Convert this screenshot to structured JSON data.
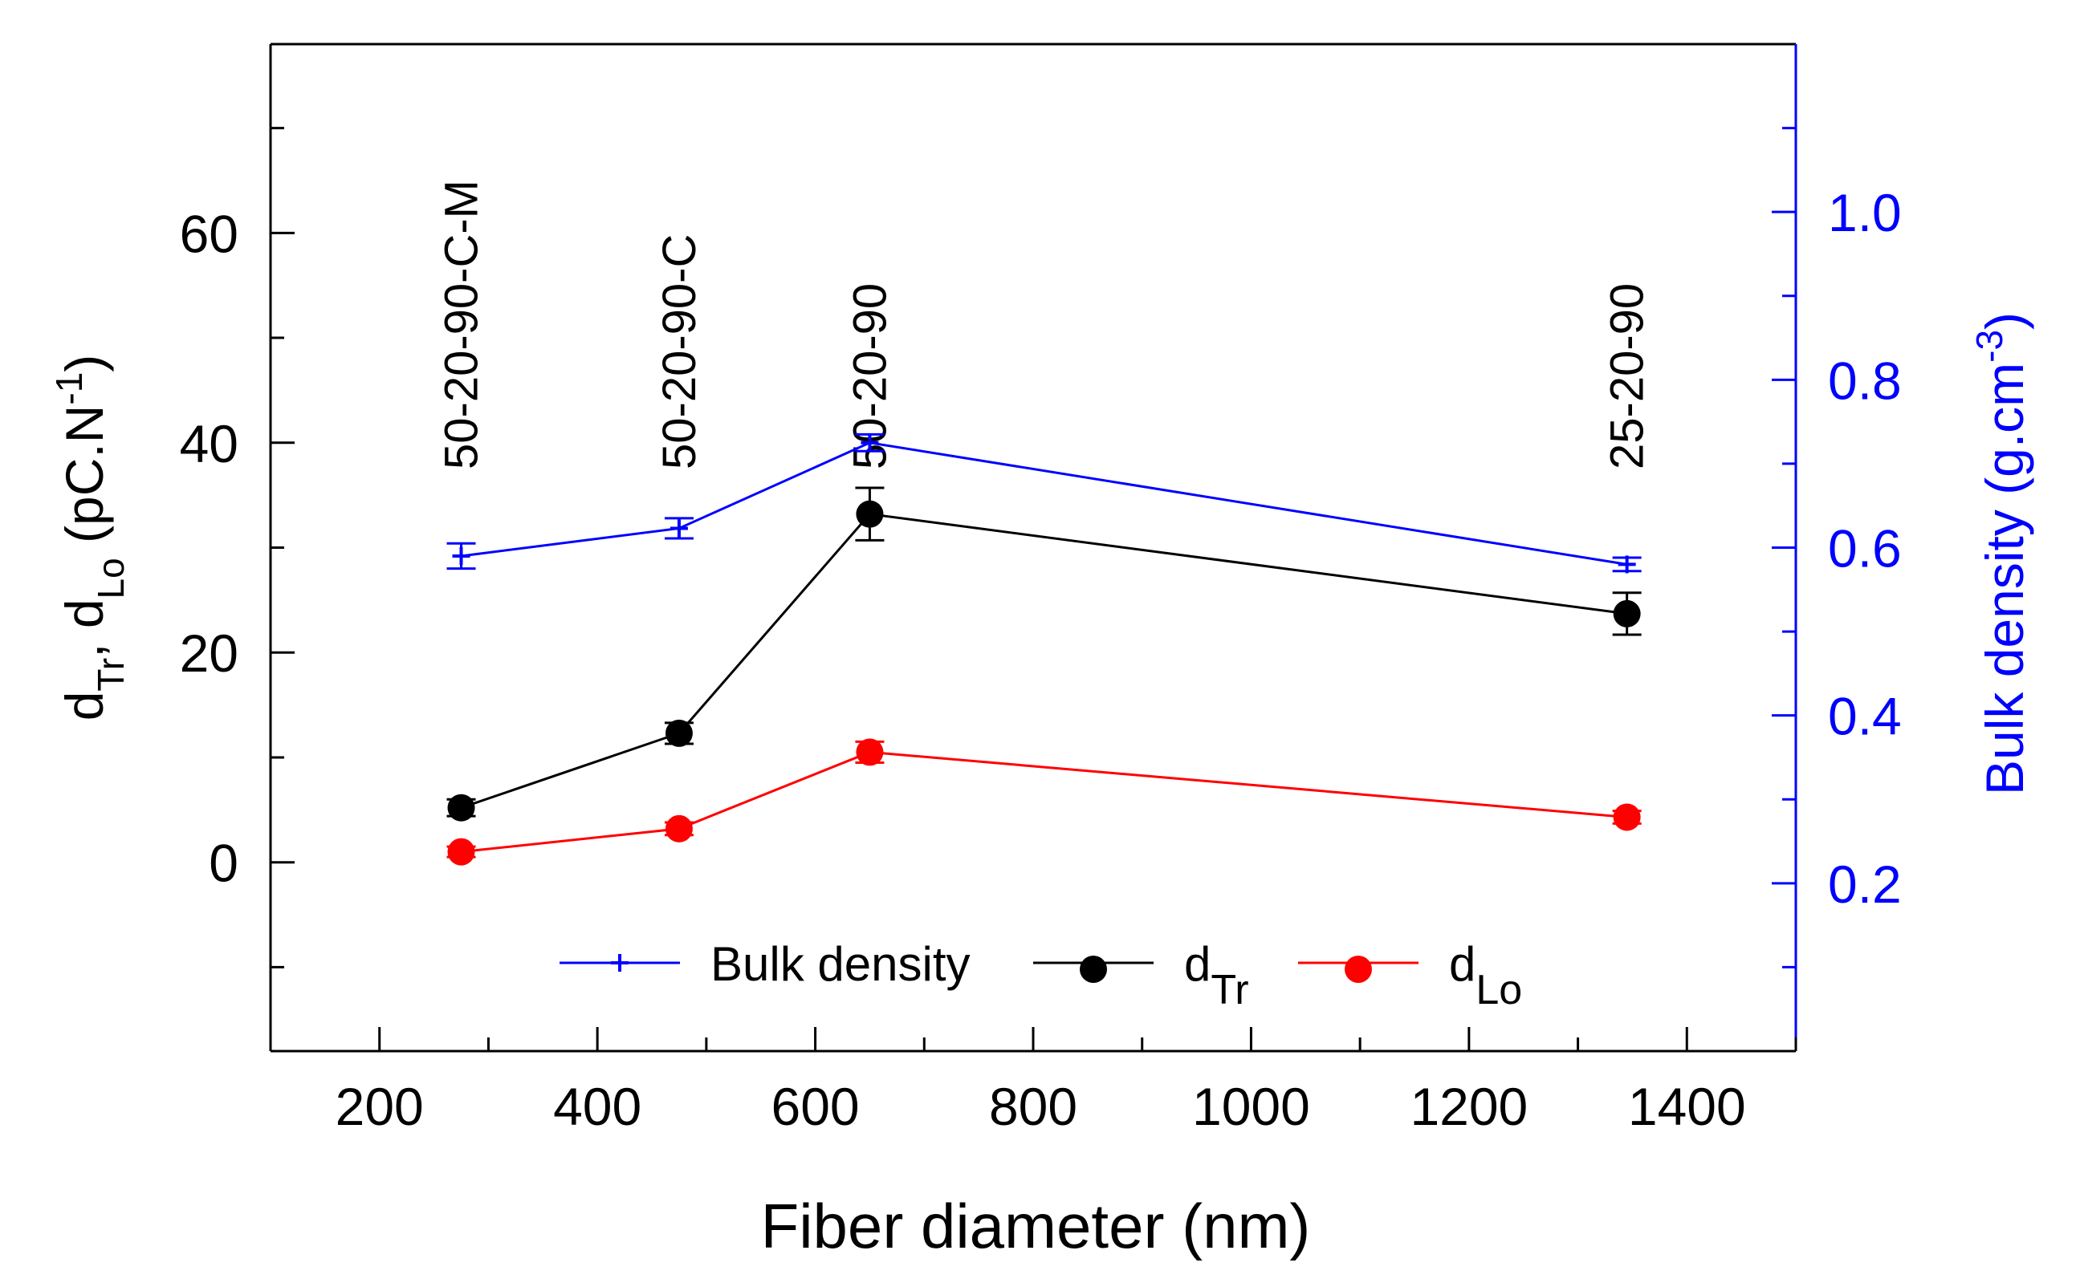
{
  "chart_data": {
    "type": "line",
    "title": "",
    "xlabel": "Fiber diameter (nm)",
    "xlim": [
      100,
      1500
    ],
    "xticks": [
      200,
      400,
      600,
      800,
      1000,
      1200,
      1400
    ],
    "y_left": {
      "label_main": "d",
      "label_sub1": "Tr",
      "label_sep": ", d",
      "label_sub2": "Lo",
      "label_unit": " (pC.N",
      "label_sup": "-1",
      "label_close": ")",
      "lim": [
        -18,
        78
      ],
      "ticks": [
        0,
        20,
        40,
        60
      ]
    },
    "y_right": {
      "label_main": "Bulk density (g.cm",
      "label_sup": "-3",
      "label_close": ")",
      "lim": [
        0,
        1.2
      ],
      "ticks": [
        0.2,
        0.4,
        0.6,
        0.8,
        1.0
      ],
      "color": "#0000ff"
    },
    "sample_labels": [
      {
        "x": 275,
        "text": "50-20-90-C-M"
      },
      {
        "x": 475,
        "text": "50-20-90-C"
      },
      {
        "x": 650,
        "text": "50-20-90"
      },
      {
        "x": 1345,
        "text": "25-20-90"
      }
    ],
    "series": [
      {
        "name": "Bulk density",
        "axis": "right",
        "color": "#0000ff",
        "marker": "plus",
        "x": [
          275,
          475,
          650,
          1345
        ],
        "values": [
          0.59,
          0.623,
          0.725,
          0.58
        ],
        "errors": [
          0.015,
          0.012,
          0.01,
          0.008
        ]
      },
      {
        "name": "d",
        "name_sub": "Tr",
        "axis": "left",
        "color": "#000000",
        "marker": "circle",
        "x": [
          275,
          475,
          650,
          1345
        ],
        "values": [
          5.2,
          12.3,
          33.2,
          23.7
        ],
        "errors": [
          0.8,
          1.0,
          2.5,
          2.0
        ]
      },
      {
        "name": "d",
        "name_sub": "Lo",
        "axis": "left",
        "color": "#ff0000",
        "marker": "circle",
        "x": [
          275,
          475,
          650,
          1345
        ],
        "values": [
          1.0,
          3.2,
          10.5,
          4.3
        ],
        "errors": [
          0.5,
          0.6,
          1.0,
          0.6
        ]
      }
    ],
    "legend_position": "bottom-center"
  }
}
